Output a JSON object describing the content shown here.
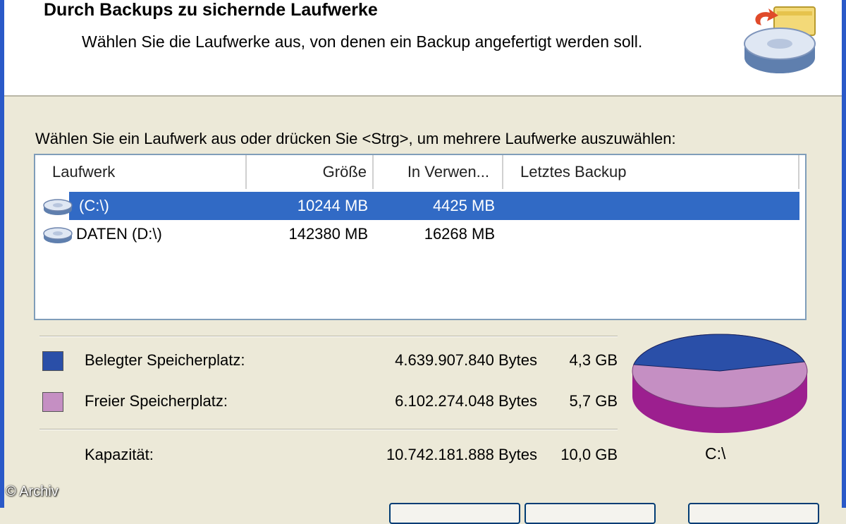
{
  "header": {
    "title": "Durch Backups zu sichernde Laufwerke",
    "subtitle": "Wählen Sie die Laufwerke aus, von denen ein Backup angefertigt werden soll.",
    "icon": "backup-drive-icon"
  },
  "instruction": "Wählen Sie ein Laufwerk aus oder drücken Sie <Strg>, um mehrere Laufwerke auszuwählen:",
  "drive_list": {
    "columns": [
      "Laufwerk",
      "Größe",
      "In Verwen...",
      "Letztes Backup"
    ],
    "rows": [
      {
        "name": "(C:\\)",
        "size": "10244 MB",
        "used": "4425 MB",
        "last_backup": "",
        "selected": true,
        "icon": "hard-drive-icon"
      },
      {
        "name": "DATEN (D:\\)",
        "size": "142380 MB",
        "used": "16268 MB",
        "last_backup": "",
        "selected": false,
        "icon": "hard-drive-icon"
      }
    ]
  },
  "stats": {
    "used": {
      "label": "Belegter Speicherplatz:",
      "bytes": "4.639.907.840 Bytes",
      "gb": "4,3 GB",
      "color": "#2a4fa8"
    },
    "free": {
      "label": "Freier Speicherplatz:",
      "bytes": "6.102.274.048 Bytes",
      "gb": "5,7 GB",
      "color": "#c58fc3"
    },
    "capacity": {
      "label": "Kapazität:",
      "bytes": "10.742.181.888 Bytes",
      "gb": "10,0 GB"
    }
  },
  "pie": {
    "label": "C:\\",
    "used_fraction": 0.432,
    "used_color": "#2a4fa8",
    "free_color": "#c58fc3",
    "free_side_color": "#9c1f8f",
    "used_side_color": "#1c2f80"
  },
  "watermark": "© Archiv"
}
